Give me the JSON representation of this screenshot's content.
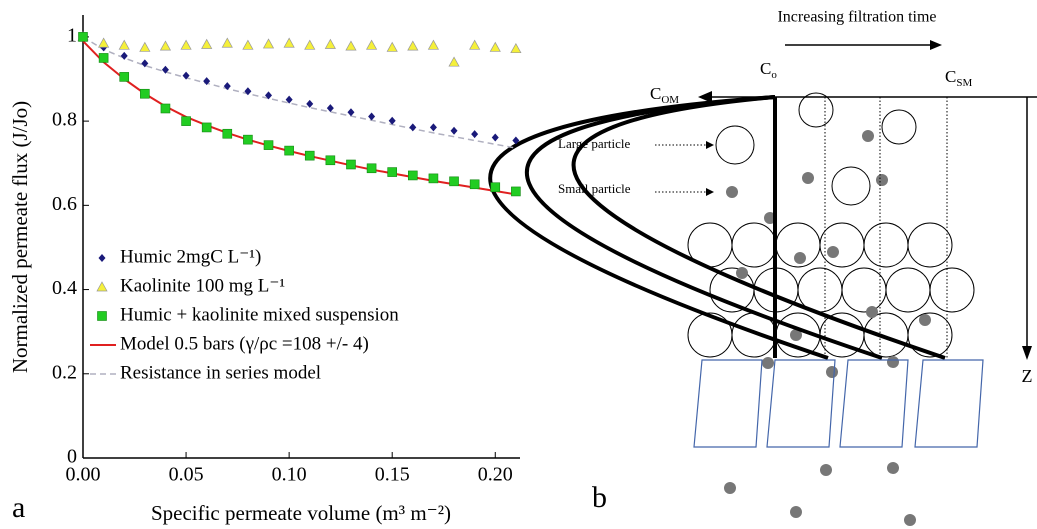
{
  "chart_data": {
    "type": "line",
    "panel_label": "a",
    "x_label": "Specific permeate volume (m³ m⁻²)",
    "y_label": "Normalized permeate flux (J/Jo)",
    "x": [
      0,
      0.01,
      0.02,
      0.03,
      0.04,
      0.05,
      0.06,
      0.07,
      0.08,
      0.09,
      0.1,
      0.11,
      0.12,
      0.13,
      0.14,
      0.15,
      0.16,
      0.17,
      0.18,
      0.19,
      0.2,
      0.21
    ],
    "series": [
      {
        "name": "Humic 2mgC L⁻¹)",
        "color": "#1a1a7a",
        "marker": "diamond",
        "values": [
          1.0,
          0.975,
          0.955,
          0.937,
          0.922,
          0.908,
          0.895,
          0.883,
          0.871,
          0.861,
          0.851,
          0.841,
          0.831,
          0.821,
          0.811,
          0.801,
          0.785,
          0.785,
          0.777,
          0.769,
          0.761,
          0.754
        ]
      },
      {
        "name": "Kaolinite 100 mg L⁻¹",
        "color": "#f5f03a",
        "marker": "triangle",
        "values": [
          1.0,
          0.985,
          0.98,
          0.975,
          0.978,
          0.98,
          0.982,
          0.985,
          0.98,
          0.983,
          0.985,
          0.98,
          0.982,
          0.978,
          0.98,
          0.975,
          0.978,
          0.98,
          0.94,
          0.98,
          0.975,
          0.972
        ]
      },
      {
        "name": "Humic + kaolinite mixed suspension",
        "color": "#22cc22",
        "marker": "square",
        "values": [
          1.0,
          0.95,
          0.905,
          0.865,
          0.83,
          0.8,
          0.785,
          0.77,
          0.756,
          0.743,
          0.73,
          0.718,
          0.707,
          0.697,
          0.688,
          0.679,
          0.671,
          0.664,
          0.657,
          0.65,
          0.643,
          0.633
        ]
      },
      {
        "name": "Model 0.5 bars (γ/ρc =108 +/- 4)",
        "color": "#e02020",
        "line": "solid",
        "values": [
          0.99,
          0.94,
          0.9,
          0.865,
          0.835,
          0.81,
          0.79,
          0.772,
          0.756,
          0.742,
          0.729,
          0.717,
          0.706,
          0.695,
          0.685,
          0.676,
          0.667,
          0.658,
          0.65,
          0.642,
          0.634,
          0.626
        ]
      },
      {
        "name": "Resistance in series model",
        "color": "#b0b0c0",
        "line": "dashed",
        "values": [
          1.0,
          0.97,
          0.95,
          0.932,
          0.917,
          0.903,
          0.89,
          0.877,
          0.865,
          0.854,
          0.843,
          0.832,
          0.822,
          0.812,
          0.802,
          0.792,
          0.782,
          0.772,
          0.763,
          0.754,
          0.745,
          0.736
        ]
      }
    ],
    "xlim": [
      0,
      0.212
    ],
    "ylim": [
      0,
      1.052
    ],
    "xticks": [
      {
        "value": 0,
        "label": "0.00"
      },
      0.05,
      {
        "value": 0.1,
        "label": "0.10"
      },
      0.15,
      {
        "value": 0.2,
        "label": "0.20"
      }
    ],
    "yticks": [
      0,
      0.2,
      0.4,
      0.6,
      0.8,
      1
    ],
    "legend": "lower left",
    "grid": false
  },
  "diagram": {
    "panel_label": "b",
    "time_label": "Increasing filtration time",
    "c_om": {
      "main": "C",
      "sub": "OM"
    },
    "c_o": {
      "main": "C",
      "sub": "o"
    },
    "c_sm": {
      "main": "C",
      "sub": "SM"
    },
    "z_label": "Z",
    "large_particle": "Large particle",
    "small_particle": "Small particle"
  }
}
